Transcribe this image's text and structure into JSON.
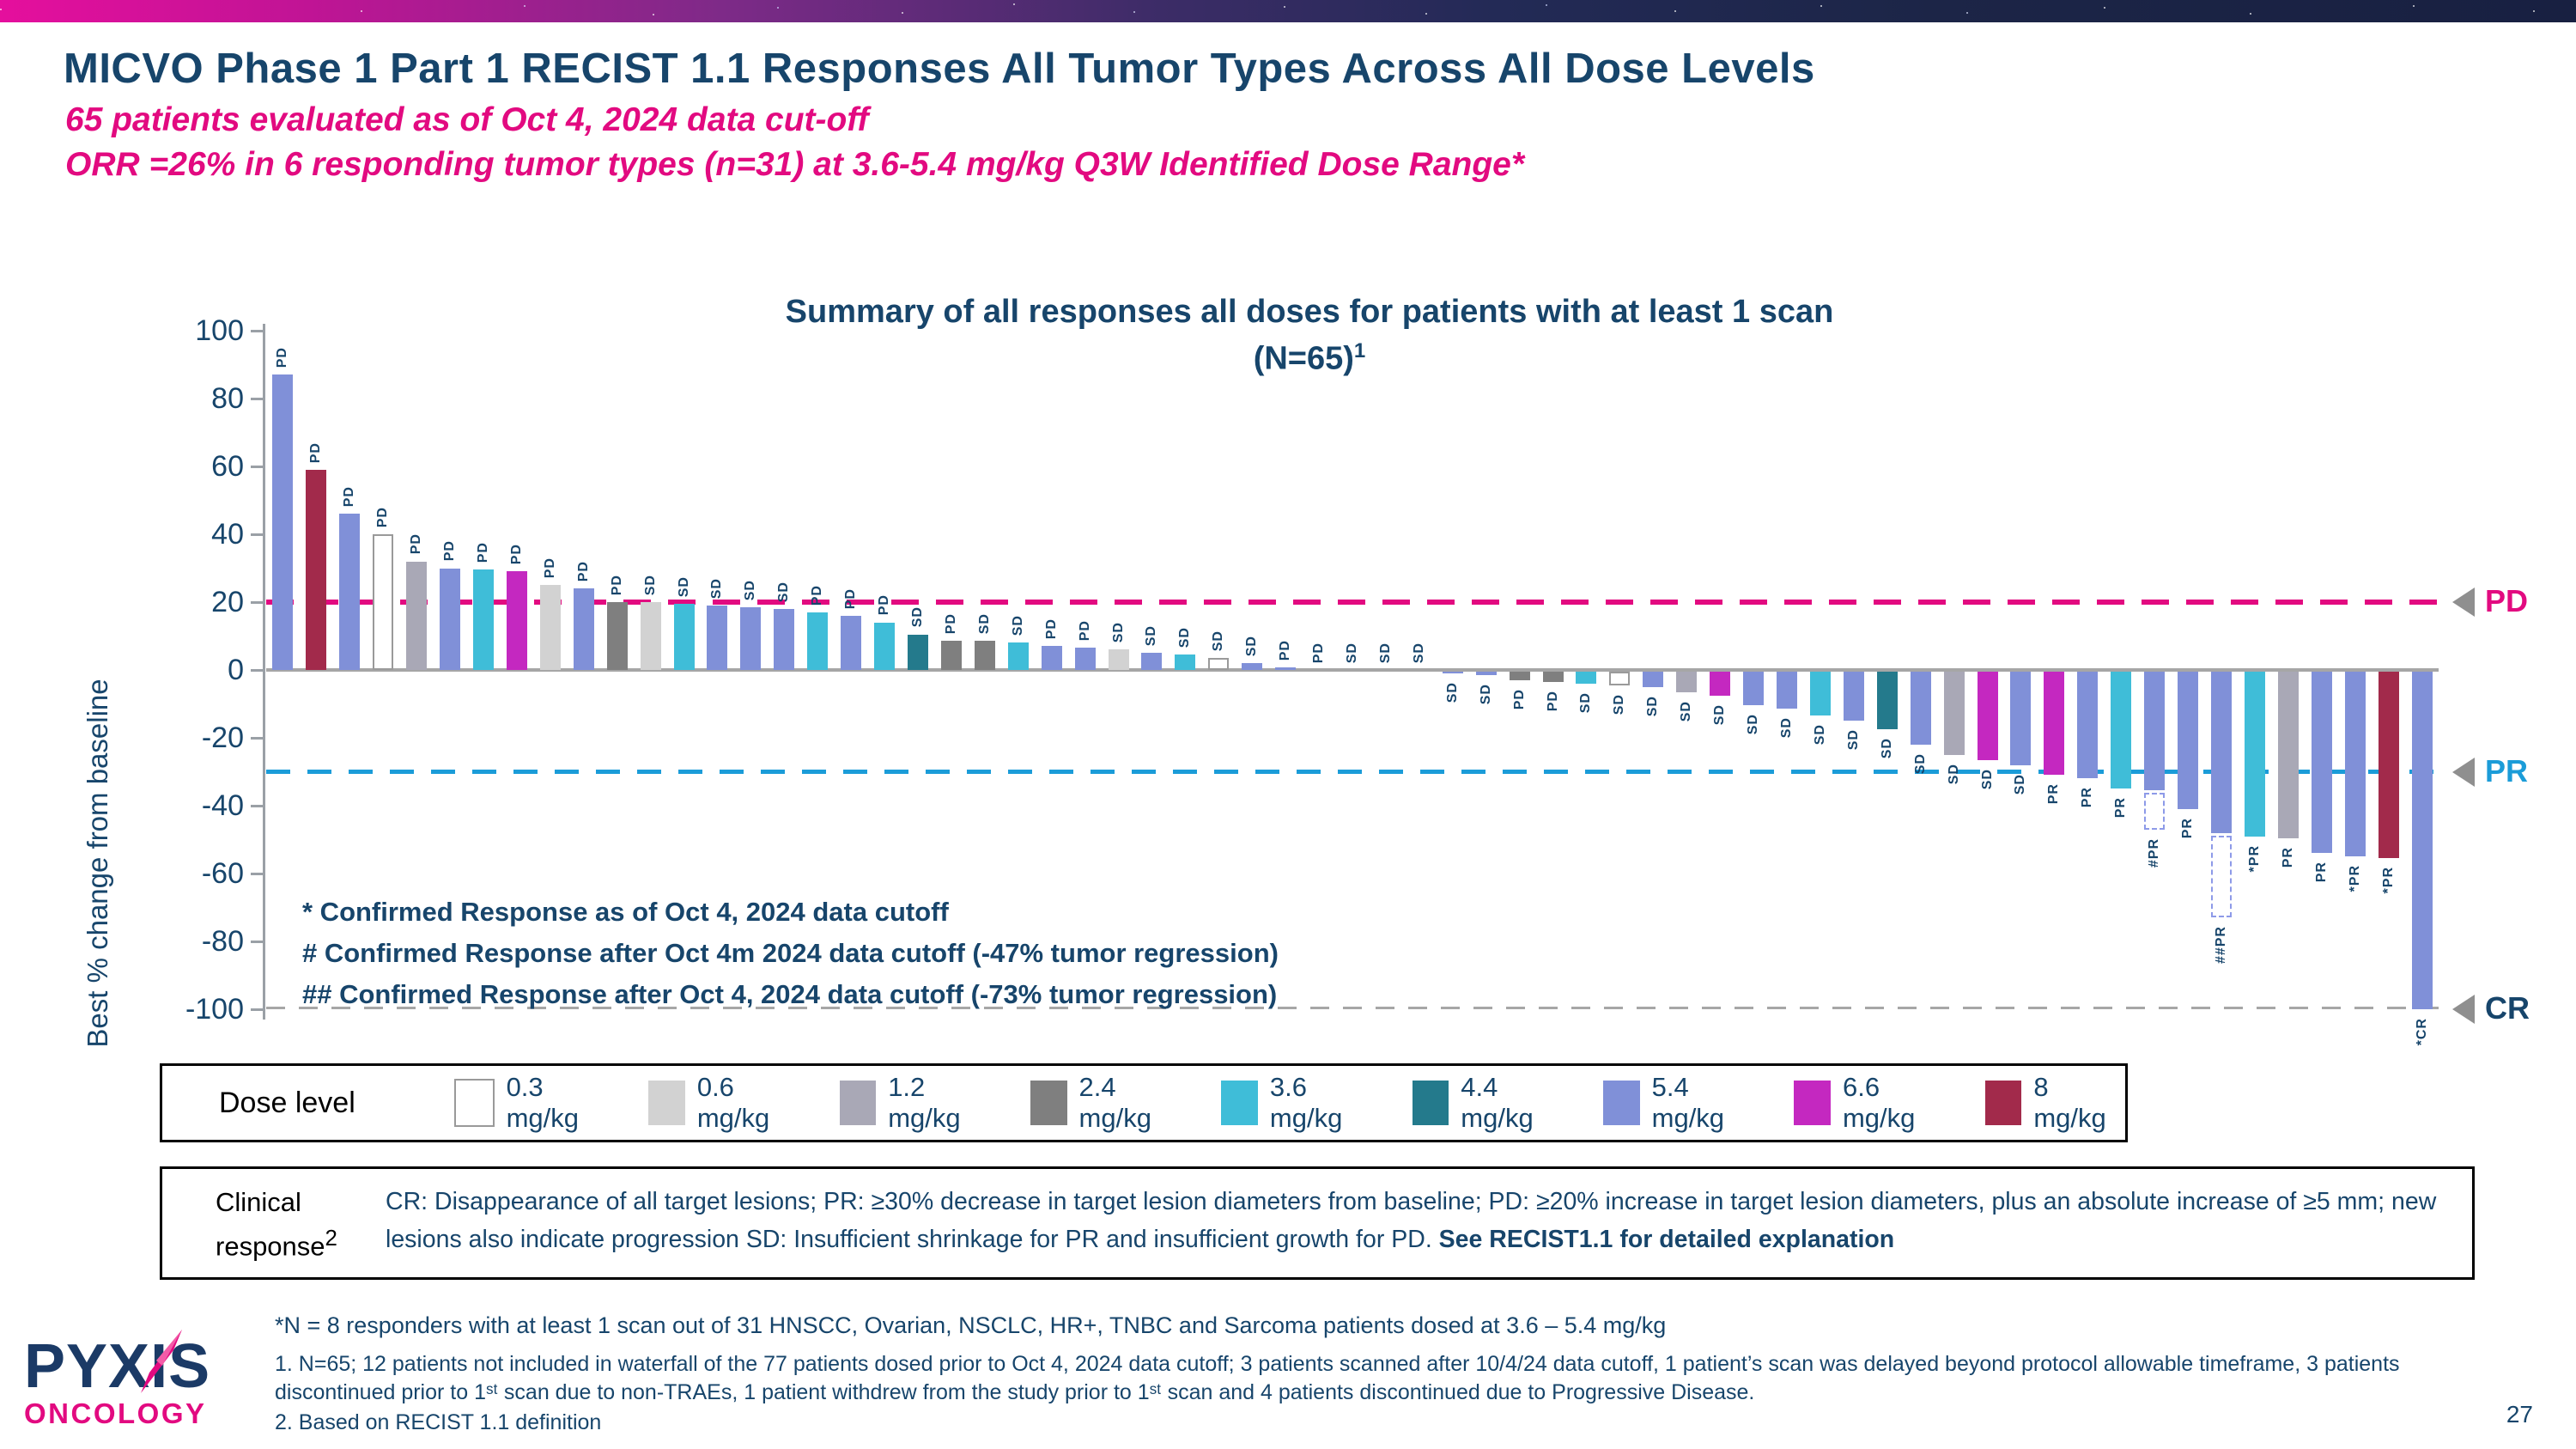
{
  "slide": {
    "title": "MICVO Phase 1 Part 1 RECIST 1.1 Responses All Tumor Types Across All Dose Levels",
    "subtitle1": "65 patients evaluated as of Oct 4, 2024 data cut-off",
    "subtitle2": "ORR =26% in 6 responding tumor types (n=31) at 3.6-5.4 mg/kg Q3W Identified Dose Range*",
    "page_number": "27"
  },
  "chart_data": {
    "type": "bar",
    "title_line1": "Summary of all responses all doses for patients with at least 1 scan",
    "title_line2": "(N=65)",
    "title_sup": "1",
    "ylabel": "Best % change from baseline",
    "ylim": [
      -100,
      100
    ],
    "yticks": [
      100,
      80,
      60,
      40,
      20,
      0,
      -20,
      -40,
      -60,
      -80,
      -100
    ],
    "grid": false,
    "thresholds": [
      {
        "id": "pd",
        "value": 20,
        "label": "PD",
        "color": "#e20a80"
      },
      {
        "id": "pr",
        "value": -30,
        "label": "PR",
        "color": "#1b9cd8"
      },
      {
        "id": "cr",
        "value": -100,
        "label": "CR",
        "color": "#17456b"
      }
    ],
    "dose_colors": {
      "0.3": "#ffffff",
      "0.6": "#d2d2d2",
      "1.2": "#a9a8b6",
      "2.4": "#7f7f7f",
      "3.6": "#3fbdd8",
      "4.4": "#247a8c",
      "5.4": "#8090d8",
      "6.6": "#c428c0",
      "8": "#a22a4b"
    },
    "bars": [
      {
        "v": 87,
        "r": "PD",
        "d": "5.4"
      },
      {
        "v": 59,
        "r": "PD",
        "d": "8"
      },
      {
        "v": 46,
        "r": "PD",
        "d": "5.4"
      },
      {
        "v": 40,
        "r": "PD",
        "d": "0.3"
      },
      {
        "v": 32,
        "r": "PD",
        "d": "1.2"
      },
      {
        "v": 30,
        "r": "PD",
        "d": "5.4"
      },
      {
        "v": 29.5,
        "r": "PD",
        "d": "3.6"
      },
      {
        "v": 29,
        "r": "PD",
        "d": "6.6"
      },
      {
        "v": 25,
        "r": "PD",
        "d": "0.6"
      },
      {
        "v": 24,
        "r": "PD",
        "d": "5.4"
      },
      {
        "v": 20,
        "r": "PD",
        "d": "2.4"
      },
      {
        "v": 20,
        "r": "SD",
        "d": "0.6"
      },
      {
        "v": 19.5,
        "r": "SD",
        "d": "3.6"
      },
      {
        "v": 19,
        "r": "SD",
        "d": "5.4"
      },
      {
        "v": 18.5,
        "r": "SD",
        "d": "5.4"
      },
      {
        "v": 18,
        "r": "SD",
        "d": "5.4"
      },
      {
        "v": 17,
        "r": "PD",
        "d": "3.6"
      },
      {
        "v": 16,
        "r": "PD",
        "d": "5.4"
      },
      {
        "v": 14,
        "r": "PD",
        "d": "3.6"
      },
      {
        "v": 10.5,
        "r": "SD",
        "d": "4.4"
      },
      {
        "v": 8.5,
        "r": "PD",
        "d": "2.4"
      },
      {
        "v": 8.5,
        "r": "SD",
        "d": "2.4"
      },
      {
        "v": 8,
        "r": "SD",
        "d": "3.6"
      },
      {
        "v": 7,
        "r": "PD",
        "d": "5.4"
      },
      {
        "v": 6.5,
        "r": "PD",
        "d": "5.4"
      },
      {
        "v": 6,
        "r": "SD",
        "d": "0.6"
      },
      {
        "v": 5,
        "r": "SD",
        "d": "5.4"
      },
      {
        "v": 4.5,
        "r": "SD",
        "d": "3.6"
      },
      {
        "v": 3.5,
        "r": "SD",
        "d": "0.3"
      },
      {
        "v": 2,
        "r": "SD",
        "d": "5.4"
      },
      {
        "v": 0.8,
        "r": "PD",
        "d": "5.4"
      },
      {
        "v": 0,
        "r": "PD",
        "d": "5.4"
      },
      {
        "v": 0,
        "r": "SD",
        "d": "5.4"
      },
      {
        "v": 0,
        "r": "SD",
        "d": "1.2"
      },
      {
        "v": 0,
        "r": "SD",
        "d": "5.4"
      },
      {
        "v": -1,
        "r": "SD",
        "d": "5.4"
      },
      {
        "v": -1.5,
        "r": "SD",
        "d": "5.4"
      },
      {
        "v": -3,
        "r": "PD",
        "d": "2.4"
      },
      {
        "v": -3.5,
        "r": "PD",
        "d": "2.4"
      },
      {
        "v": -4,
        "r": "SD",
        "d": "3.6"
      },
      {
        "v": -4.5,
        "r": "SD",
        "d": "0.3"
      },
      {
        "v": -5,
        "r": "SD",
        "d": "5.4"
      },
      {
        "v": -6.5,
        "r": "SD",
        "d": "1.2"
      },
      {
        "v": -7.5,
        "r": "SD",
        "d": "6.6"
      },
      {
        "v": -10.5,
        "r": "SD",
        "d": "5.4"
      },
      {
        "v": -11.5,
        "r": "SD",
        "d": "5.4"
      },
      {
        "v": -13.5,
        "r": "SD",
        "d": "3.6"
      },
      {
        "v": -15,
        "r": "SD",
        "d": "5.4"
      },
      {
        "v": -17.5,
        "r": "SD",
        "d": "4.4"
      },
      {
        "v": -22,
        "r": "SD",
        "d": "5.4"
      },
      {
        "v": -25,
        "r": "SD",
        "d": "1.2"
      },
      {
        "v": -26.5,
        "r": "SD",
        "d": "6.6"
      },
      {
        "v": -28,
        "r": "SD",
        "d": "5.4"
      },
      {
        "v": -31,
        "r": "PR",
        "d": "6.6"
      },
      {
        "v": -32,
        "r": "PR",
        "d": "5.4"
      },
      {
        "v": -35,
        "r": "PR",
        "d": "3.6"
      },
      {
        "v": -35.5,
        "r": "#PR",
        "d": "5.4",
        "dash": -47
      },
      {
        "v": -41,
        "r": "PR",
        "d": "5.4"
      },
      {
        "v": -48,
        "r": "##PR",
        "d": "5.4",
        "dash": -73
      },
      {
        "v": -49,
        "r": "*PR",
        "d": "3.6"
      },
      {
        "v": -49.5,
        "r": "PR",
        "d": "1.2"
      },
      {
        "v": -54,
        "r": "PR",
        "d": "5.4"
      },
      {
        "v": -55,
        "r": "*PR",
        "d": "5.4"
      },
      {
        "v": -55.5,
        "r": "*PR",
        "d": "8"
      },
      {
        "v": -100,
        "r": "*CR",
        "d": "5.4"
      }
    ]
  },
  "annotations": {
    "line1": "* Confirmed Response as of Oct 4, 2024 data cutoff",
    "line2": "# Confirmed Response after Oct 4m 2024 data cutoff (-47% tumor regression)",
    "line3": "## Confirmed Response after Oct 4, 2024 data cutoff (-73% tumor regression)"
  },
  "legend": {
    "title": "Dose level",
    "items": [
      {
        "label": "0.3 mg/kg",
        "dose": "0.3"
      },
      {
        "label": "0.6 mg/kg",
        "dose": "0.6"
      },
      {
        "label": "1.2 mg/kg",
        "dose": "1.2"
      },
      {
        "label": "2.4 mg/kg",
        "dose": "2.4"
      },
      {
        "label": "3.6 mg/kg",
        "dose": "3.6"
      },
      {
        "label": "4.4 mg/kg",
        "dose": "4.4"
      },
      {
        "label": "5.4 mg/kg",
        "dose": "5.4"
      },
      {
        "label": "6.6 mg/kg",
        "dose": "6.6"
      },
      {
        "label": "8 mg/kg",
        "dose": "8"
      }
    ]
  },
  "clinical": {
    "label_line1": "Clinical",
    "label_line2": "response",
    "label_sup": "2",
    "text": "CR: Disappearance of all target lesions; PR: ≥30% decrease in target lesion diameters from baseline; PD: ≥20% increase in target lesion diameters, plus an absolute increase of ≥5 mm; new lesions also indicate progression SD: Insufficient shrinkage for PR and insufficient growth for PD. ",
    "bold_text": "See RECIST1.1 for detailed explanation"
  },
  "footnotes": {
    "star": "*N = 8 responders with at least 1 scan out of 31 HNSCC, Ovarian, NSCLC, HR+, TNBC and Sarcoma patients dosed at 3.6 – 5.4 mg/kg",
    "fn1": "1.  N=65; 12 patients not included in waterfall of the 77 patients dosed prior to Oct 4, 2024 data cutoff; 3 patients scanned after 10/4/24 data cutoff, 1 patient’s scan was delayed beyond protocol allowable timeframe, 3 patients discontinued prior to 1ˢᵗ scan due to non-TRAEs, 1 patient withdrew from the study prior to 1ˢᵗ scan and 4 patients discontinued due to Progressive Disease.",
    "fn2": "2. Based on RECIST 1.1 definition"
  },
  "logo": {
    "name": "PYXIS",
    "sub": "ONCOLOGY"
  }
}
